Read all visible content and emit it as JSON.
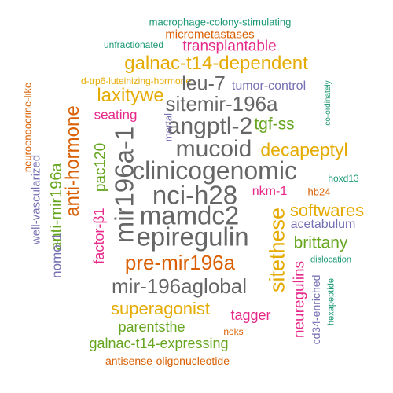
{
  "words": [
    {
      "id": "macrophage-colony-stimulating",
      "text": "macrophage-colony-stimulating",
      "color": "#1a9873"
    },
    {
      "id": "micrometastases",
      "text": "micrometastases",
      "color": "#d95f02"
    },
    {
      "id": "unfractionated",
      "text": "unfractionated",
      "color": "#1a9873"
    },
    {
      "id": "transplantable",
      "text": "transplantable",
      "color": "#e7298a"
    },
    {
      "id": "galnac-t14-dependent",
      "text": "galnac-t14-dependent",
      "color": "#e6ab02"
    },
    {
      "id": "neuroendocrine-like",
      "text": "neuroendocrine-like",
      "color": "#d95f02"
    },
    {
      "id": "d-trp6-luteinizing-hormone",
      "text": "d-trp6-luteinizing-hormone",
      "color": "#e6ab02"
    },
    {
      "id": "anti-hormone",
      "text": "anti-hormone",
      "color": "#d95f02"
    },
    {
      "id": "leu-7",
      "text": "leu-7",
      "color": "#666666"
    },
    {
      "id": "tumor-control",
      "text": "tumor-control",
      "color": "#7570b3"
    },
    {
      "id": "co-ordinately",
      "text": "co-ordinately",
      "color": "#1a9873"
    },
    {
      "id": "laxitywe",
      "text": "laxitywe",
      "color": "#e6ab02"
    },
    {
      "id": "sitemir-196a",
      "text": "sitemir-196a",
      "color": "#666666"
    },
    {
      "id": "seating",
      "text": "seating",
      "color": "#e7298a"
    },
    {
      "id": "mir196a-1",
      "text": "mir196a-1",
      "color": "#666666"
    },
    {
      "id": "angptl-2",
      "text": "angptl-2",
      "color": "#666666"
    },
    {
      "id": "tgf-ss",
      "text": "tgf-ss",
      "color": "#66a61e"
    },
    {
      "id": "anti-mir196a",
      "text": "anti-mir196a",
      "color": "#66a61e"
    },
    {
      "id": "pac120",
      "text": "pac120",
      "color": "#66a61e"
    },
    {
      "id": "mortal",
      "text": "mortal",
      "color": "#7570b3"
    },
    {
      "id": "mucoid",
      "text": "mucoid",
      "color": "#666666"
    },
    {
      "id": "decapeptyl",
      "text": "decapeptyl",
      "color": "#e6ab02"
    },
    {
      "id": "well-vascularized",
      "text": "well-vascularized",
      "color": "#7570b3"
    },
    {
      "id": "clinicogenomic",
      "text": "clinicogenomic",
      "color": "#666666"
    },
    {
      "id": "hoxd13",
      "text": "hoxd13",
      "color": "#1a9873"
    },
    {
      "id": "nci-h28",
      "text": "nci-h28",
      "color": "#666666"
    },
    {
      "id": "nkm-1",
      "text": "nkm-1",
      "color": "#e7298a"
    },
    {
      "id": "hb24",
      "text": "hb24",
      "color": "#d95f02"
    },
    {
      "id": "softwares",
      "text": "softwares",
      "color": "#e6ab02"
    },
    {
      "id": "mamdc2",
      "text": "mamdc2",
      "color": "#666666"
    },
    {
      "id": "factor-b1",
      "text": "factor-β1",
      "color": "#e7298a"
    },
    {
      "id": "sitethese",
      "text": "sitethese",
      "color": "#e6ab02"
    },
    {
      "id": "acetabulum",
      "text": "acetabulum",
      "color": "#7570b3"
    },
    {
      "id": "epiregulin",
      "text": "epiregulin",
      "color": "#666666"
    },
    {
      "id": "nomo-1",
      "text": "nomo-1",
      "color": "#7570b3"
    },
    {
      "id": "brittany",
      "text": "brittany",
      "color": "#66a61e"
    },
    {
      "id": "pre-mir196a",
      "text": "pre-mir196a",
      "color": "#d95f02"
    },
    {
      "id": "dislocation",
      "text": "dislocation",
      "color": "#1a9873"
    },
    {
      "id": "cd34-enriched",
      "text": "cd34-enriched",
      "color": "#7570b3"
    },
    {
      "id": "hexapeptide",
      "text": "hexapeptide",
      "color": "#1a9873"
    },
    {
      "id": "mir-196aglobal",
      "text": "mir-196aglobal",
      "color": "#666666"
    },
    {
      "id": "neuregulins",
      "text": "neuregulins",
      "color": "#e7298a"
    },
    {
      "id": "superagonist",
      "text": "superagonist",
      "color": "#e6ab02"
    },
    {
      "id": "tagger",
      "text": "tagger",
      "color": "#e7298a"
    },
    {
      "id": "parentsthe",
      "text": "parentsthe",
      "color": "#66a61e"
    },
    {
      "id": "noks",
      "text": "noks",
      "color": "#d95f02"
    },
    {
      "id": "galnac-t14-expressing",
      "text": "galnac-t14-expressing",
      "color": "#66a61e"
    },
    {
      "id": "antisense-oligonucleotide",
      "text": "antisense-oligonucleotide",
      "color": "#d95f02"
    }
  ]
}
